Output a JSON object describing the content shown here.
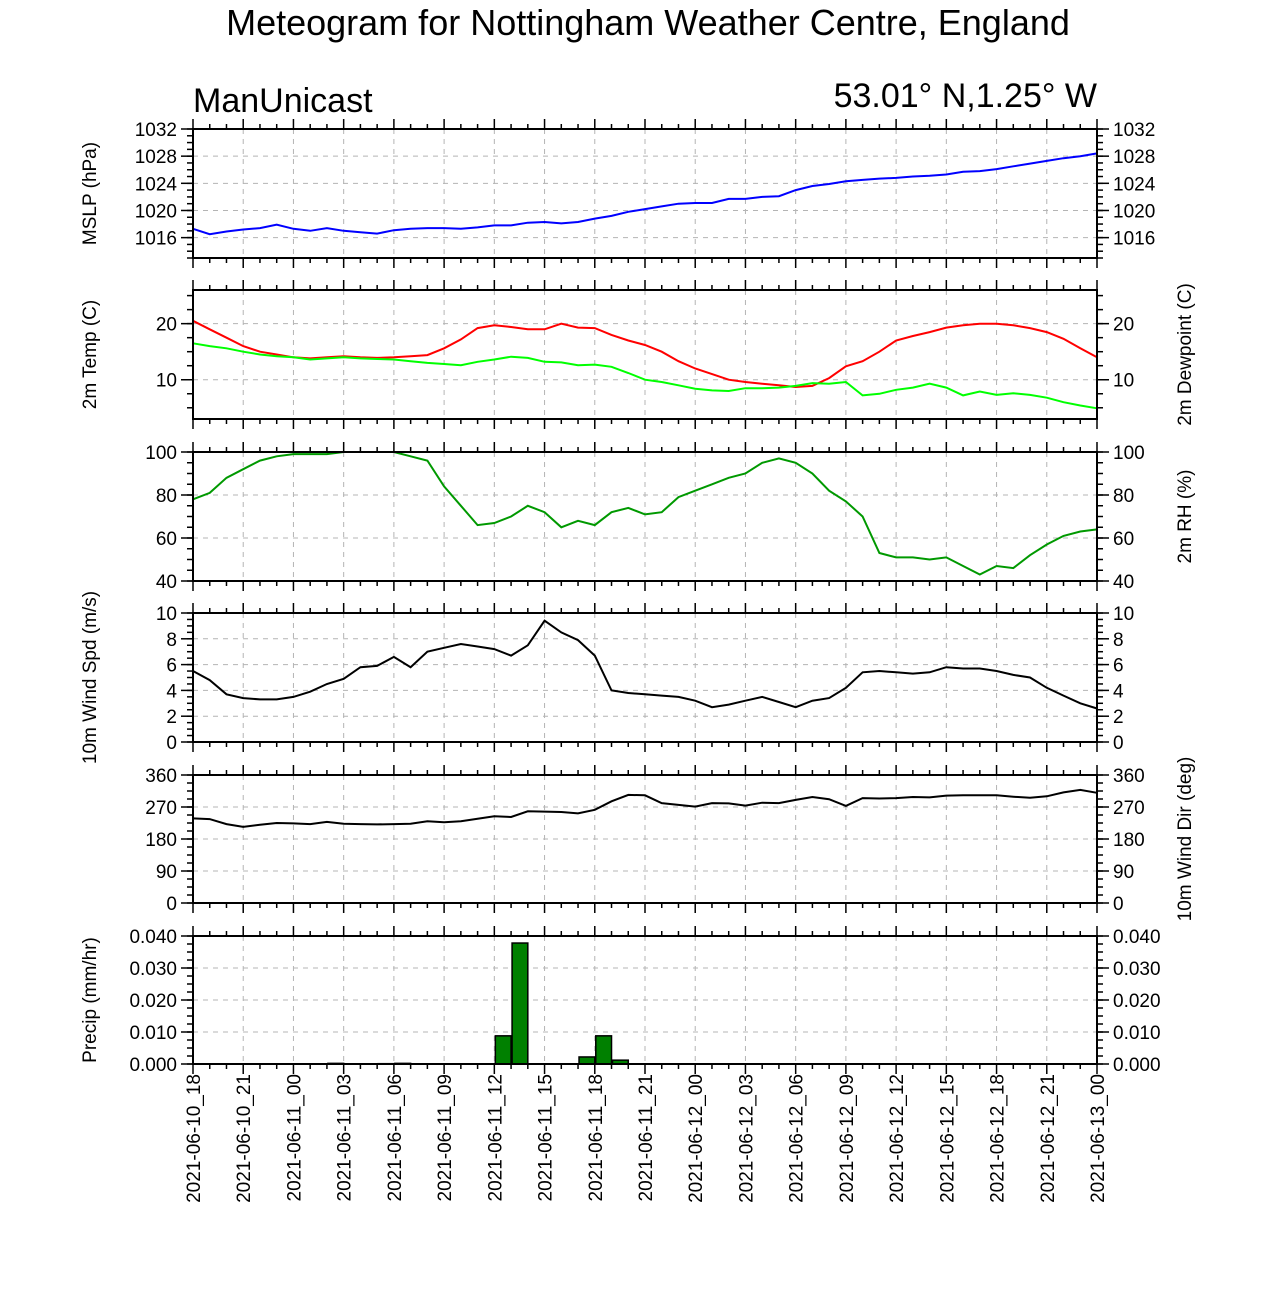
{
  "title": "Meteogram for Nottingham Weather Centre, England",
  "model": "ManUnicast",
  "location": "53.01° N,1.25° W",
  "x_tick_labels": [
    "2021-06-10_18",
    "2021-06-10_21",
    "2021-06-11_00",
    "2021-06-11_03",
    "2021-06-11_06",
    "2021-06-11_09",
    "2021-06-11_12",
    "2021-06-11_15",
    "2021-06-11_18",
    "2021-06-11_21",
    "2021-06-12_00",
    "2021-06-12_03",
    "2021-06-12_06",
    "2021-06-12_09",
    "2021-06-12_12",
    "2021-06-12_15",
    "2021-06-12_18",
    "2021-06-12_21",
    "2021-06-13_00"
  ],
  "colors": {
    "mslp": "#0000ff",
    "temp": "#ff0000",
    "dewpoint": "#00ff00",
    "rh": "#009900",
    "wind": "#000000",
    "precip": "#008000",
    "grid": "#b4b4b4"
  },
  "chart_data": [
    {
      "type": "line",
      "ylabel": "MSLP (hPa)",
      "ylim": [
        1013,
        1032
      ],
      "yticks": [
        1016,
        1020,
        1024,
        1028,
        1032
      ],
      "ytick_labels": [
        "1016",
        "1020",
        "1024",
        "1028",
        "1032"
      ],
      "grid": true,
      "series": [
        {
          "color": "mslp",
          "x": [
            0,
            1,
            2,
            3,
            4,
            5,
            6,
            7,
            8,
            9,
            10,
            11,
            12,
            13,
            14,
            15,
            16,
            17,
            18,
            19,
            20,
            21,
            22,
            23,
            24,
            25,
            26,
            27,
            28,
            29,
            30,
            31,
            32,
            33,
            34,
            35,
            36,
            37,
            38,
            39,
            40,
            41,
            42,
            43,
            44,
            45,
            46,
            47,
            48,
            49,
            50,
            51,
            52,
            53,
            54
          ],
          "values": [
            1017.3,
            1016.5,
            1016.9,
            1017.2,
            1017.4,
            1017.9,
            1017.3,
            1017.0,
            1017.4,
            1017.0,
            1016.8,
            1016.6,
            1017.1,
            1017.3,
            1017.4,
            1017.4,
            1017.3,
            1017.5,
            1017.8,
            1017.8,
            1018.2,
            1018.3,
            1018.1,
            1018.3,
            1018.8,
            1019.2,
            1019.8,
            1020.2,
            1020.6,
            1021.0,
            1021.1,
            1021.1,
            1021.7,
            1021.7,
            1022.0,
            1022.1,
            1023.0,
            1023.6,
            1023.9,
            1024.3,
            1024.5,
            1024.7,
            1024.8,
            1025.0,
            1025.1,
            1025.3,
            1025.7,
            1025.8,
            1026.1,
            1026.5,
            1026.9,
            1027.3,
            1027.7,
            1028.0,
            1028.4
          ]
        }
      ]
    },
    {
      "type": "line",
      "ylabel": "2m Temp (C)",
      "ylabel_right": "2m Dewpoint (C)",
      "ylim": [
        3,
        26
      ],
      "yticks": [
        10,
        20
      ],
      "ytick_labels": [
        "10",
        "20"
      ],
      "grid": true,
      "series": [
        {
          "color": "temp",
          "x": [
            0,
            1,
            2,
            3,
            4,
            5,
            6,
            7,
            8,
            9,
            10,
            11,
            12,
            13,
            14,
            15,
            16,
            17,
            18,
            19,
            20,
            21,
            22,
            23,
            24,
            25,
            26,
            27,
            28,
            29,
            30,
            31,
            32,
            33,
            34,
            35,
            36,
            37,
            38,
            39,
            40,
            41,
            42,
            43,
            44,
            45,
            46,
            47,
            48,
            49,
            50,
            51,
            52,
            53,
            54
          ],
          "values": [
            20.5,
            19.0,
            17.5,
            16.0,
            15.0,
            14.5,
            14.0,
            13.8,
            14.0,
            14.2,
            14.0,
            13.9,
            14.0,
            14.2,
            14.4,
            15.6,
            17.2,
            19.2,
            19.7,
            19.4,
            19.0,
            19.0,
            20.0,
            19.3,
            19.2,
            18.0,
            17.0,
            16.2,
            15.0,
            13.3,
            12.0,
            11.0,
            10.0,
            9.6,
            9.3,
            9.0,
            8.7,
            8.9,
            10.3,
            12.4,
            13.3,
            15.0,
            17.0,
            17.8,
            18.5,
            19.3,
            19.7,
            20.0,
            20.0,
            19.7,
            19.2,
            18.5,
            17.3,
            15.6,
            14.0
          ]
        },
        {
          "color": "dewpoint",
          "x": [
            0,
            1,
            2,
            3,
            4,
            5,
            6,
            7,
            8,
            9,
            10,
            11,
            12,
            13,
            14,
            15,
            16,
            17,
            18,
            19,
            20,
            21,
            22,
            23,
            24,
            25,
            26,
            27,
            28,
            29,
            30,
            31,
            32,
            33,
            34,
            35,
            36,
            37,
            38,
            39,
            40,
            41,
            42,
            43,
            44,
            45,
            46,
            47,
            48,
            49,
            50,
            51,
            52,
            53,
            54
          ],
          "values": [
            16.5,
            16.0,
            15.6,
            15.0,
            14.5,
            14.2,
            14.0,
            13.6,
            13.8,
            14.0,
            13.8,
            13.7,
            13.6,
            13.3,
            13.0,
            12.8,
            12.6,
            13.2,
            13.6,
            14.1,
            13.9,
            13.2,
            13.1,
            12.6,
            12.7,
            12.3,
            11.2,
            10.0,
            9.6,
            9.0,
            8.4,
            8.1,
            8.0,
            8.5,
            8.5,
            8.6,
            8.9,
            9.4,
            9.3,
            9.6,
            7.2,
            7.5,
            8.2,
            8.6,
            9.3,
            8.6,
            7.2,
            7.9,
            7.3,
            7.6,
            7.3,
            6.8,
            6.0,
            5.4,
            4.9
          ]
        }
      ]
    },
    {
      "type": "line",
      "ylabel_right": "2m RH (%)",
      "ylim": [
        40,
        100
      ],
      "yticks": [
        40,
        60,
        80,
        100
      ],
      "ytick_labels": [
        "40",
        "60",
        "80",
        "100"
      ],
      "grid": true,
      "series": [
        {
          "color": "rh",
          "x": [
            0,
            1,
            2,
            3,
            4,
            5,
            6,
            7,
            8,
            9,
            10,
            11,
            12,
            13,
            14,
            15,
            16,
            17,
            18,
            19,
            20,
            21,
            22,
            23,
            24,
            25,
            26,
            27,
            28,
            29,
            30,
            31,
            32,
            33,
            34,
            35,
            36,
            37,
            38,
            39,
            40,
            41,
            42,
            43,
            44,
            45,
            46,
            47,
            48,
            49,
            50,
            51,
            52,
            53,
            54
          ],
          "values": [
            78,
            81,
            88,
            92,
            96,
            98,
            99,
            99,
            99,
            100,
            100,
            100,
            100,
            98,
            96,
            84,
            75,
            66,
            67,
            70,
            75,
            72,
            65,
            68,
            66,
            72,
            74,
            71,
            72,
            79,
            82,
            85,
            88,
            90,
            95,
            97,
            95,
            90,
            82,
            77,
            70,
            53,
            51,
            51,
            50,
            51,
            47,
            43,
            47,
            46,
            52,
            57,
            61,
            63,
            64
          ]
        }
      ]
    },
    {
      "type": "line",
      "ylabel": "10m Wind Spd (m/s)",
      "ylim": [
        0,
        10
      ],
      "yticks": [
        0,
        2,
        4,
        6,
        8,
        10
      ],
      "ytick_labels": [
        "0",
        "2",
        "4",
        "6",
        "8",
        "10"
      ],
      "grid": true,
      "series": [
        {
          "color": "wind",
          "x": [
            0,
            1,
            2,
            3,
            4,
            5,
            6,
            7,
            8,
            9,
            10,
            11,
            12,
            13,
            14,
            15,
            16,
            17,
            18,
            19,
            20,
            21,
            22,
            23,
            24,
            25,
            26,
            27,
            28,
            29,
            30,
            31,
            32,
            33,
            34,
            35,
            36,
            37,
            38,
            39,
            40,
            41,
            42,
            43,
            44,
            45,
            46,
            47,
            48,
            49,
            50,
            51,
            52,
            53,
            54
          ],
          "values": [
            5.5,
            4.8,
            3.7,
            3.4,
            3.3,
            3.3,
            3.5,
            3.9,
            4.5,
            4.9,
            5.8,
            5.9,
            6.6,
            5.8,
            7.0,
            7.3,
            7.6,
            7.4,
            7.2,
            6.7,
            7.5,
            9.4,
            8.5,
            7.9,
            6.7,
            4.0,
            3.8,
            3.7,
            3.6,
            3.5,
            3.2,
            2.7,
            2.9,
            3.2,
            3.5,
            3.1,
            2.7,
            3.2,
            3.4,
            4.2,
            5.4,
            5.5,
            5.4,
            5.3,
            5.4,
            5.8,
            5.7,
            5.7,
            5.5,
            5.2,
            5.0,
            4.2,
            3.6,
            3.0,
            2.6
          ]
        }
      ]
    },
    {
      "type": "line",
      "ylabel_right": "10m Wind Dir (deg)",
      "ylim": [
        0,
        360
      ],
      "yticks": [
        0,
        90,
        180,
        270,
        360
      ],
      "ytick_labels": [
        "0",
        "90",
        "180",
        "270",
        "360"
      ],
      "grid": true,
      "series": [
        {
          "color": "wind",
          "x": [
            0,
            1,
            2,
            3,
            4,
            5,
            6,
            7,
            8,
            9,
            10,
            11,
            12,
            13,
            14,
            15,
            16,
            17,
            18,
            19,
            20,
            21,
            22,
            23,
            24,
            25,
            26,
            27,
            28,
            29,
            30,
            31,
            32,
            33,
            34,
            35,
            36,
            37,
            38,
            39,
            40,
            41,
            42,
            43,
            44,
            45,
            46,
            47,
            48,
            49,
            50,
            51,
            52,
            53,
            54
          ],
          "values": [
            238,
            236,
            222,
            214,
            220,
            225,
            224,
            222,
            228,
            223,
            222,
            221,
            222,
            223,
            230,
            227,
            230,
            237,
            244,
            242,
            258,
            257,
            256,
            252,
            262,
            286,
            304,
            303,
            281,
            276,
            271,
            281,
            280,
            274,
            282,
            281,
            290,
            298,
            292,
            273,
            295,
            294,
            295,
            298,
            297,
            302,
            303,
            303,
            303,
            299,
            296,
            300,
            311,
            318,
            310
          ]
        }
      ]
    },
    {
      "type": "bar",
      "ylabel": "Precip (mm/hr)",
      "ylim": [
        0,
        0.04
      ],
      "yticks": [
        0,
        0.01,
        0.02,
        0.03,
        0.04
      ],
      "ytick_labels": [
        "0.000",
        "0.010",
        "0.020",
        "0.030",
        "0.040"
      ],
      "grid": true,
      "series": [
        {
          "color": "precip",
          "x": [
            8,
            11,
            12,
            18,
            19,
            23,
            24,
            25
          ],
          "values": [
            0.0002,
            0.0001,
            0.0002,
            0.0088,
            0.0378,
            0.0022,
            0.0088,
            0.0012
          ]
        }
      ]
    }
  ]
}
